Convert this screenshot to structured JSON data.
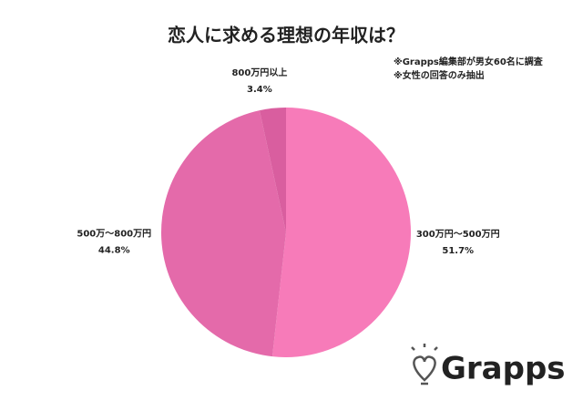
{
  "chart_data": {
    "type": "pie",
    "title": "恋人に求める理想の年収は？",
    "notes": [
      "※Grapps編集部が男女60名に調査",
      "※女性の回答のみ抽出"
    ],
    "categories": [
      "300万円～500万円",
      "500万～800万円",
      "800万円以上"
    ],
    "values": [
      51.7,
      44.8,
      3.4
    ],
    "value_labels": [
      "51.7%",
      "44.8%",
      "3.4%"
    ],
    "colors": [
      "#f77bb9",
      "#e46aaa",
      "#d95e9f"
    ]
  },
  "brand": "Grapps"
}
